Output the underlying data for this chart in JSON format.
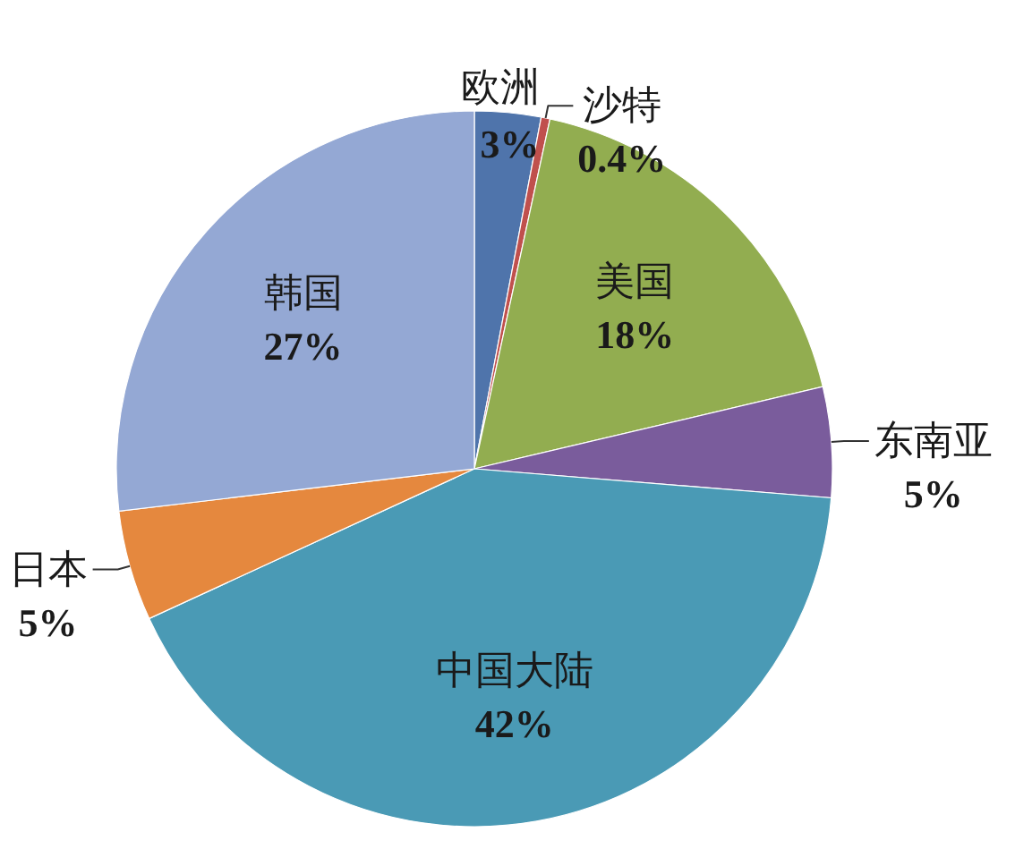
{
  "chart_data": {
    "type": "pie",
    "categories": [
      "欧洲",
      "沙特",
      "美国",
      "东南亚",
      "中国大陆",
      "日本",
      "韩国"
    ],
    "values": [
      3,
      0.4,
      18,
      5,
      42,
      5,
      27
    ],
    "colors": [
      "#4f74ab",
      "#c0504d",
      "#92ad50",
      "#7a5c9c",
      "#4a9ab5",
      "#e5883e",
      "#94a8d4"
    ],
    "value_labels": [
      "3%",
      "0.4%",
      "18%",
      "5%",
      "42%",
      "5%",
      "27%"
    ]
  }
}
